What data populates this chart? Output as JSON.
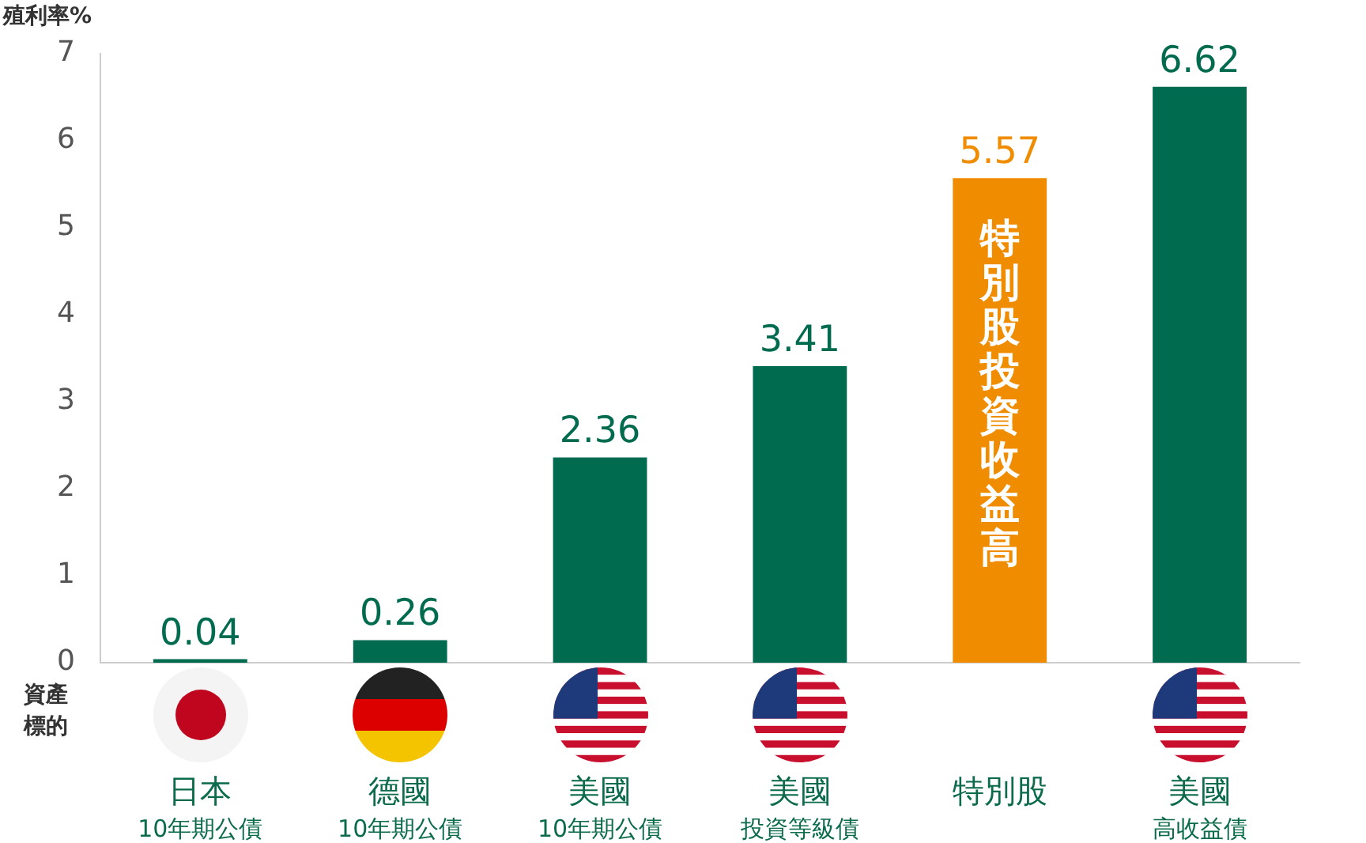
{
  "chart_data": {
    "type": "bar",
    "ylabel": "殖利率%",
    "categories": [
      "日本",
      "德國",
      "美國",
      "美國",
      "特別股",
      "美國"
    ],
    "values": [
      0.04,
      0.26,
      2.36,
      3.41,
      5.57,
      6.62
    ],
    "colors": [
      "#006b4f",
      "#006b4f",
      "#006b4f",
      "#006b4f",
      "#f08c00",
      "#006b4f"
    ],
    "ylim": [
      0,
      7
    ],
    "yticks": [
      0,
      1,
      2,
      3,
      4,
      5,
      6,
      7
    ],
    "grid": false,
    "legend": false,
    "data_labels": true,
    "annotations": [
      "資產標的",
      "特別股投資收益高",
      "10年期公債",
      "10年期公債",
      "10年期公債",
      "投資等級債",
      "高收益債"
    ]
  }
}
